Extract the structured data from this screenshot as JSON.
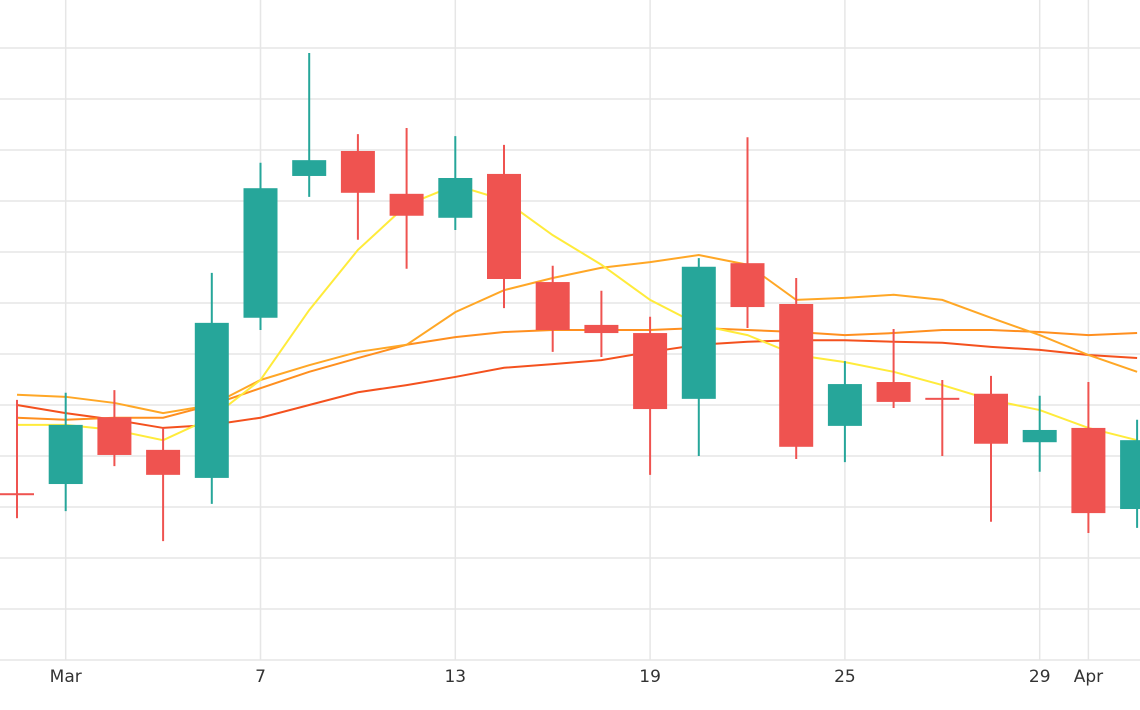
{
  "chart_data": {
    "type": "candlestick",
    "categories": [
      null,
      "Mar",
      null,
      null,
      null,
      "7",
      null,
      null,
      null,
      "13",
      null,
      null,
      null,
      "19",
      null,
      null,
      null,
      "25",
      null,
      null,
      null,
      "29",
      "Apr",
      null
    ],
    "open": [
      3.27,
      3.45,
      4.76,
      4.12,
      3.57,
      6.71,
      9.49,
      9.98,
      9.14,
      8.67,
      9.53,
      7.41,
      6.57,
      6.41,
      5.12,
      7.78,
      6.98,
      4.59,
      5.45,
      5.14,
      5.22,
      4.27,
      4.55,
      2.96
    ],
    "high": [
      5.1,
      5.24,
      5.29,
      4.55,
      7.59,
      9.75,
      11.9,
      10.31,
      10.43,
      10.27,
      10.1,
      7.73,
      7.24,
      6.73,
      7.88,
      10.25,
      7.49,
      5.86,
      6.49,
      5.49,
      5.57,
      5.18,
      5.45,
      4.71
    ],
    "low": [
      2.78,
      2.92,
      3.8,
      2.33,
      3.06,
      6.47,
      9.08,
      8.24,
      7.67,
      8.43,
      6.9,
      6.04,
      5.94,
      3.63,
      4.0,
      6.51,
      3.94,
      3.88,
      4.94,
      4.0,
      2.71,
      3.69,
      2.49,
      2.59
    ],
    "close": [
      3.27,
      4.61,
      4.02,
      3.63,
      6.61,
      9.25,
      9.8,
      9.16,
      8.71,
      9.45,
      7.47,
      6.47,
      6.41,
      4.92,
      7.71,
      6.92,
      4.18,
      5.41,
      5.06,
      5.12,
      4.24,
      4.51,
      2.88,
      4.31
    ],
    "up_color": "#26a69a",
    "down_color": "#ef5350",
    "lines": [
      {
        "color": "#f4511e",
        "values": [
          5.0,
          4.84,
          4.71,
          4.55,
          4.61,
          4.75,
          5.0,
          5.25,
          5.39,
          5.55,
          5.73,
          5.8,
          5.88,
          6.04,
          6.18,
          6.24,
          6.27,
          6.27,
          6.24,
          6.22,
          6.14,
          6.08,
          5.98,
          5.92
        ]
      },
      {
        "color": "#ff8f1f",
        "values": [
          4.75,
          4.71,
          4.75,
          4.75,
          5.0,
          5.33,
          5.65,
          5.92,
          6.18,
          6.33,
          6.43,
          6.47,
          6.47,
          6.47,
          6.51,
          6.47,
          6.43,
          6.37,
          6.41,
          6.47,
          6.47,
          6.43,
          6.37,
          6.41
        ]
      },
      {
        "color": "#ffa726",
        "values": [
          5.2,
          5.16,
          5.04,
          4.84,
          5.0,
          5.49,
          5.78,
          6.04,
          6.18,
          6.82,
          7.25,
          7.49,
          7.69,
          7.8,
          7.94,
          7.75,
          7.06,
          7.1,
          7.16,
          7.06,
          6.71,
          6.37,
          5.98,
          5.65
        ]
      },
      {
        "color": "#ffeb3b",
        "values": [
          4.61,
          4.61,
          4.51,
          4.31,
          4.75,
          5.49,
          6.86,
          8.04,
          8.92,
          9.31,
          9.02,
          8.33,
          7.75,
          7.06,
          6.57,
          6.37,
          5.98,
          5.84,
          5.65,
          5.39,
          5.1,
          4.9,
          4.55,
          4.31
        ]
      }
    ],
    "ylim": [
      0,
      12.94
    ],
    "yticks": [
      0,
      1,
      2,
      3,
      4,
      5,
      6,
      7,
      8,
      9,
      10,
      11,
      12
    ],
    "grid": true
  }
}
